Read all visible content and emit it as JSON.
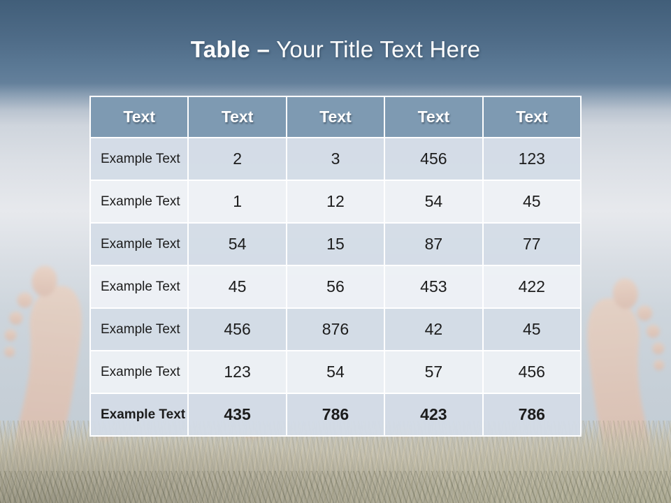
{
  "slide": {
    "title": {
      "bold_part": "Table –",
      "regular_part": "Your Title Text Here"
    },
    "background": {
      "description_elements": [
        "sky-gradient",
        "left-bare-foot",
        "right-bare-foot",
        "grass"
      ],
      "band_top_color": "#415e79",
      "sky_color": "#cdd5dc",
      "grass_color": "#c0bbaa",
      "skin_color": "#edbfa4"
    }
  },
  "table": {
    "headers": [
      "Text",
      "Text",
      "Text",
      "Text",
      "Text"
    ],
    "rows": [
      {
        "label": "Example Text",
        "values": [
          "2",
          "3",
          "456",
          "123"
        ],
        "emphasis": false
      },
      {
        "label": "Example Text",
        "values": [
          "1",
          "12",
          "54",
          "45"
        ],
        "emphasis": false
      },
      {
        "label": "Example Text",
        "values": [
          "54",
          "15",
          "87",
          "77"
        ],
        "emphasis": false
      },
      {
        "label": "Example Text",
        "values": [
          "45",
          "56",
          "453",
          "422"
        ],
        "emphasis": false
      },
      {
        "label": "Example Text",
        "values": [
          "456",
          "876",
          "42",
          "45"
        ],
        "emphasis": false
      },
      {
        "label": "Example Text",
        "values": [
          "123",
          "54",
          "57",
          "456"
        ],
        "emphasis": false
      },
      {
        "label": "Example Text",
        "values": [
          "435",
          "786",
          "423",
          "786"
        ],
        "emphasis": true
      }
    ],
    "colors": {
      "header_bg": "#7e9ab2",
      "header_text": "#ffffff",
      "row_odd_bg": "#d3dce7",
      "row_even_bg": "#eef1f5",
      "grid_lines": "#ffffff",
      "body_text": "#1c1c1c"
    }
  }
}
